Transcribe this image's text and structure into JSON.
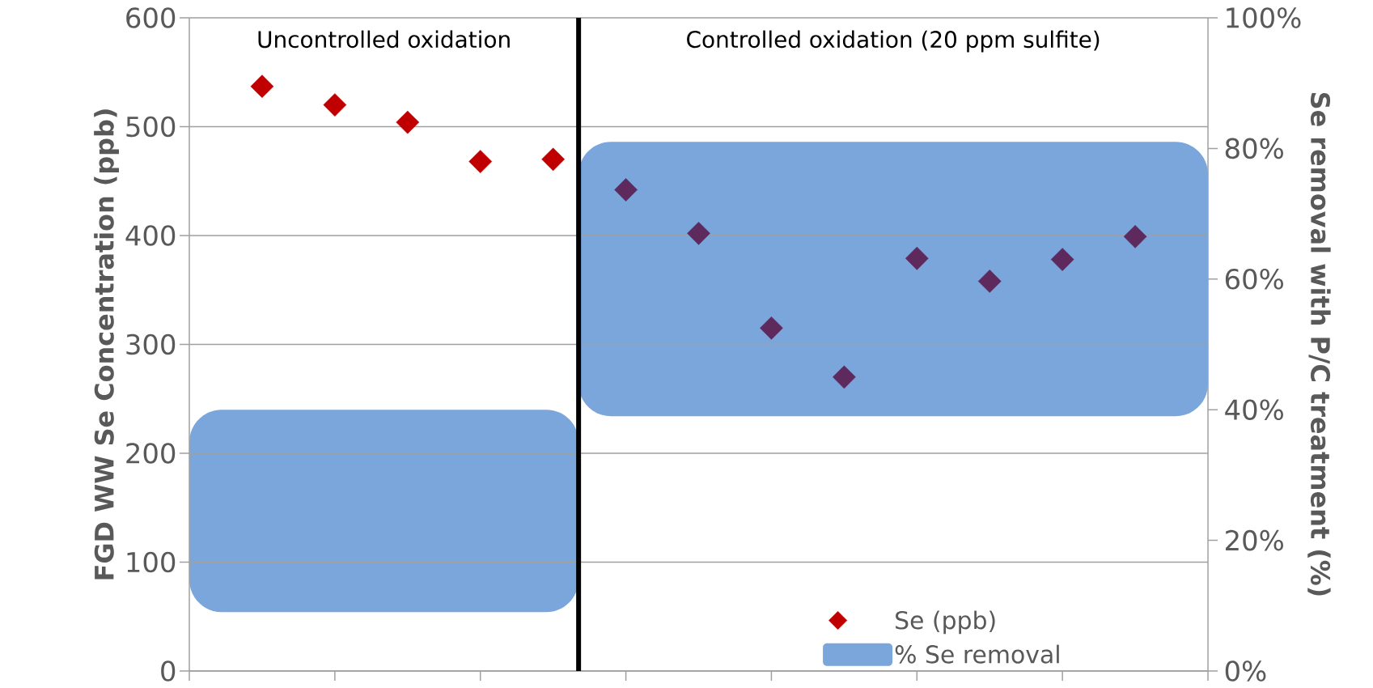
{
  "chart_data": {
    "type": "scatter",
    "ylabel": "FGD WW Se Concentration (ppb)",
    "y2label": "Se removal with P/C treatment (%)",
    "annotations": [
      "Uncontrolled oxidation",
      "Controlled oxidation (20 ppm sulfite)"
    ],
    "categories": [
      null,
      null,
      null,
      null,
      null,
      null,
      null,
      null,
      null,
      null,
      null,
      null,
      null
    ],
    "series": [
      {
        "name": "Se (ppb)",
        "color": "#c00000",
        "values": [
          537,
          520,
          504,
          468,
          470,
          442,
          402,
          315,
          270,
          379,
          358,
          378,
          399
        ],
        "colors": [
          "#c00000",
          "#c00000",
          "#c00000",
          "#c00000",
          "#c00000",
          "#5e2a5e",
          "#5e2a5e",
          "#5e2a5e",
          "#5e2a5e",
          "#5e2a5e",
          "#5e2a5e",
          "#5e2a5e",
          "#5e2a5e"
        ]
      }
    ],
    "marker": "diamond",
    "ylim": [
      0,
      600
    ],
    "yticks": [
      0,
      100,
      200,
      300,
      400,
      500,
      600
    ],
    "y2lim": [
      0,
      100
    ],
    "y2ticks": [
      {
        "value": 0,
        "label": "0%"
      },
      {
        "value": 20,
        "label": "20%"
      },
      {
        "value": 40,
        "label": "40%"
      },
      {
        "value": 60,
        "label": "60%"
      },
      {
        "value": 80,
        "label": "80%"
      },
      {
        "value": 100,
        "label": "100%"
      }
    ],
    "bands": [
      {
        "axis": "y2",
        "from": 9,
        "to": 40,
        "label": "% Se removal",
        "color": "#7aa6dc"
      },
      {
        "axis": "y2",
        "from": 39,
        "to": 81,
        "color": "#7aa6dc"
      }
    ],
    "grid": "y",
    "legend": "bottom right"
  }
}
